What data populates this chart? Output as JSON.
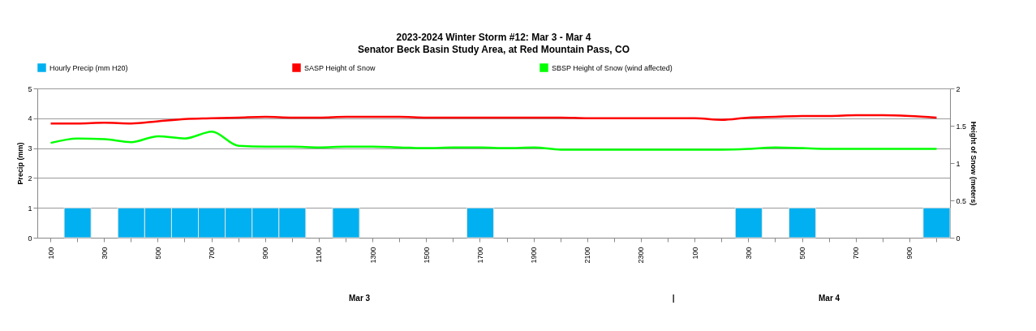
{
  "chart_data": {
    "type": "bar",
    "title": "2023-2024 Winter Storm #12:  Mar 3 - Mar 4",
    "subtitle": "Senator Beck Basin Study Area, at Red Mountain Pass, CO",
    "ylabel": "Precip (mm)",
    "y2label": "Height of Snow (meters)",
    "categories": [
      "100",
      null,
      "300",
      null,
      "500",
      null,
      "700",
      null,
      "900",
      null,
      "1100",
      null,
      "1300",
      null,
      "1500",
      null,
      "1700",
      null,
      "1900",
      null,
      "2100",
      null,
      "2300",
      null,
      "100",
      null,
      "300",
      null,
      "500",
      null,
      "700",
      null,
      "900",
      null
    ],
    "series": [
      {
        "name": "Hourly Precip (mm H20)",
        "color": "#00b0f0",
        "values": [
          0,
          1,
          0,
          1,
          1,
          1,
          1,
          1,
          1,
          1,
          0,
          1,
          0,
          0,
          0,
          0,
          1,
          0,
          0,
          0,
          0,
          0,
          0,
          0,
          0,
          0,
          1,
          0,
          1,
          0,
          0,
          0,
          0,
          1
        ]
      },
      {
        "name": "SASP Height of Snow",
        "type": "line",
        "axis": "y2",
        "color": "#ff0000",
        "values": [
          1.53,
          1.53,
          1.54,
          1.53,
          1.56,
          1.59,
          1.6,
          1.61,
          1.62,
          1.61,
          1.61,
          1.62,
          1.62,
          1.62,
          1.61,
          1.61,
          1.61,
          1.61,
          1.61,
          1.61,
          1.6,
          1.6,
          1.6,
          1.6,
          1.6,
          1.58,
          1.61,
          1.62,
          1.63,
          1.63,
          1.64,
          1.64,
          1.63,
          1.61
        ]
      },
      {
        "name": "SBSP Height of Snow (wind affected)",
        "type": "line",
        "axis": "y2",
        "color": "#00ff00",
        "values": [
          1.27,
          1.33,
          1.32,
          1.28,
          1.36,
          1.33,
          1.42,
          1.23,
          1.22,
          1.22,
          1.21,
          1.22,
          1.22,
          1.21,
          1.2,
          1.21,
          1.21,
          1.2,
          1.21,
          1.18,
          1.18,
          1.18,
          1.18,
          1.18,
          1.18,
          1.18,
          1.19,
          1.21,
          1.2,
          1.19,
          1.19,
          1.19,
          1.19,
          1.19
        ]
      }
    ],
    "ylim": [
      0,
      5
    ],
    "yticks": [
      0,
      1,
      2,
      3,
      4,
      5
    ],
    "y2lim": [
      0,
      2
    ],
    "y2ticks": [
      0,
      0.5,
      1,
      1.5,
      2
    ],
    "grid": "y",
    "legend": "top",
    "annotations": [
      "Mar 3",
      "|",
      "Mar 4"
    ]
  }
}
